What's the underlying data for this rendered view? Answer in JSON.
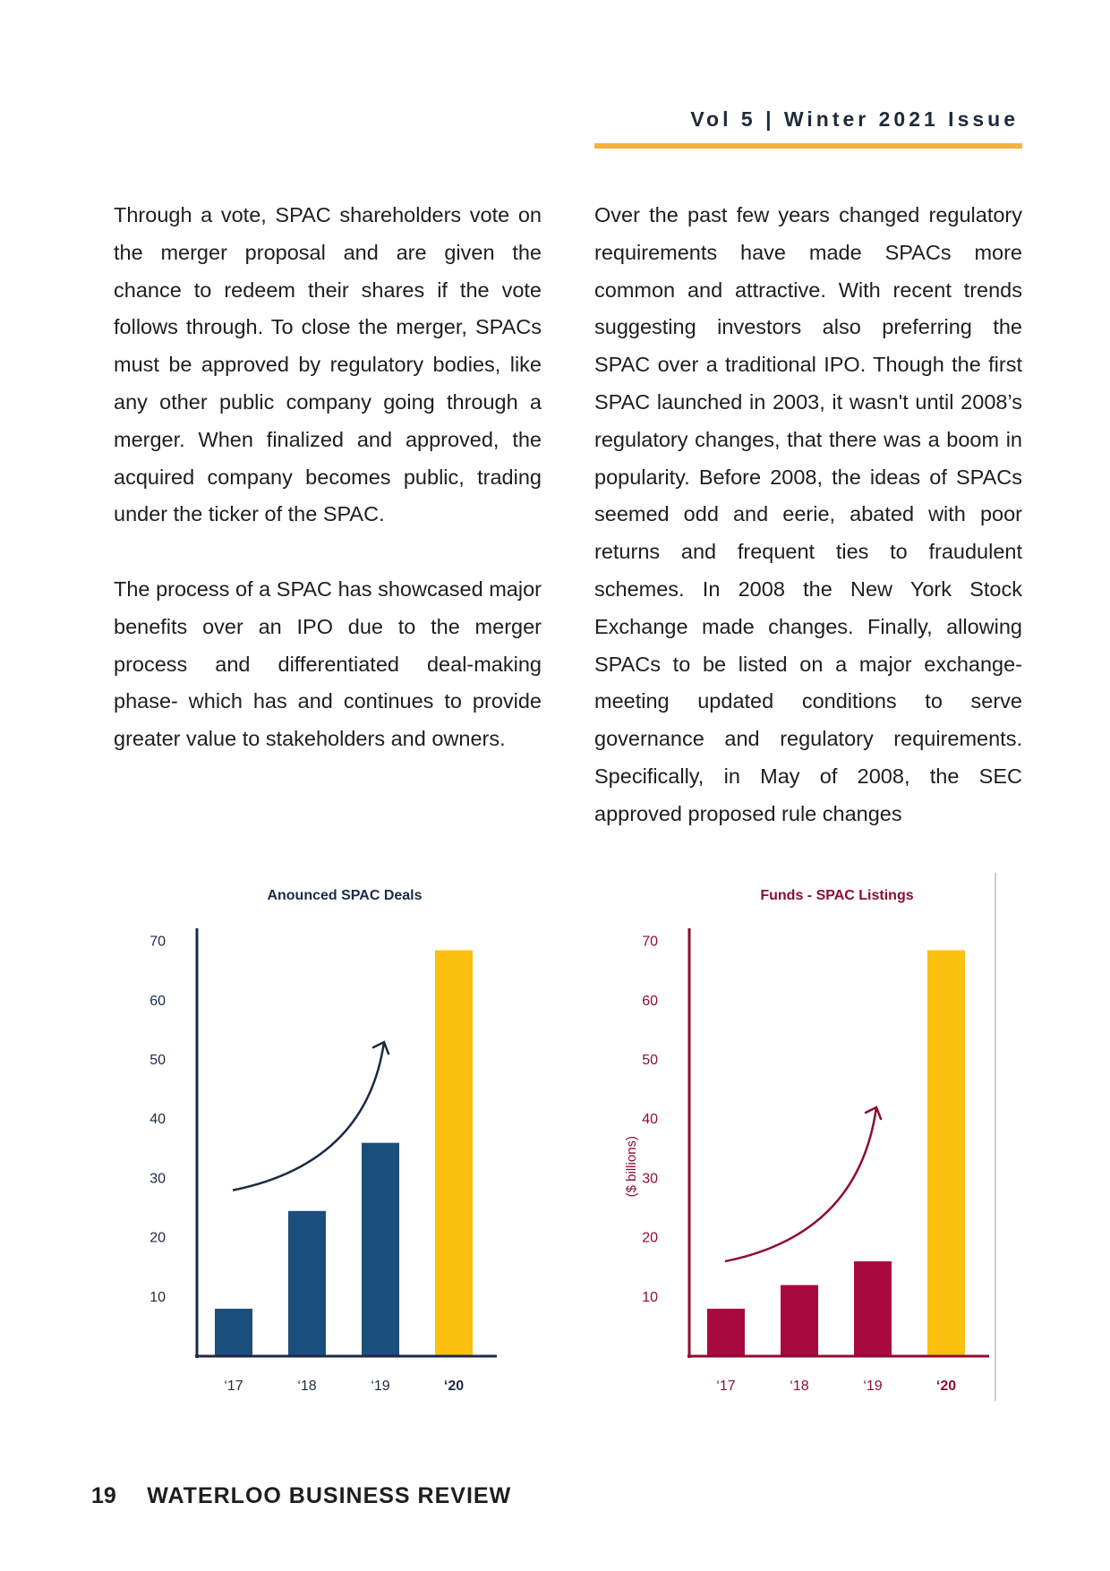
{
  "header": {
    "issue": "Vol 5 | Winter 2021 Issue",
    "rule_color": "#f6b23e"
  },
  "columns": {
    "left": [
      "Through a vote, SPAC shareholders vote on the merger proposal and are given the chance to redeem their shares if the vote follows through. To close the merger, SPACs must be approved by regulatory bodies, like any other public company going through a merger. When finalized and approved, the acquired company becomes public, trading under the ticker of the SPAC.",
      "The process of a SPAC has showcased major benefits over an IPO due to the merger process and differentiated deal-making phase- which has and continues to provide greater value to stakeholders and owners."
    ],
    "right": [
      "Over the past few years changed regulatory requirements have made SPACs more common and attractive. With recent trends suggesting investors also preferring the SPAC over a traditional IPO. Though the first SPAC launched in 2003, it wasn't until 2008’s regulatory changes, that there was a boom in popularity. Before 2008, the ideas of SPACs seemed odd and eerie, abated with poor returns and frequent ties to fraudulent schemes. In 2008 the New York Stock Exchange made changes. Finally, allowing SPACs to be listed on a major exchange- meeting updated conditions to serve governance and regulatory requirements. Specifically, in May of 2008, the SEC approved proposed rule changes"
    ]
  },
  "chart_data": [
    {
      "type": "bar",
      "title": "Anounced SPAC Deals",
      "categories": [
        "‘17",
        "‘18",
        "‘19",
        "‘20"
      ],
      "values": [
        8,
        24.5,
        36,
        68.5
      ],
      "yticks": [
        10,
        20,
        30,
        40,
        50,
        60,
        70
      ],
      "ylim": [
        0,
        72
      ],
      "ylabel": "",
      "bar_colors": [
        "#1a4e7c",
        "#1a4e7c",
        "#1a4e7c",
        "#fcc10e"
      ],
      "axis_color": "#1c2b45",
      "title_color": "#1c2b45",
      "tick_color": "#1c2b45",
      "trend_arrow": true,
      "last_label_bold": true
    },
    {
      "type": "bar",
      "title": "Funds - SPAC Listings",
      "categories": [
        "‘17",
        "‘18",
        "‘19",
        "‘20"
      ],
      "values": [
        8,
        12,
        16,
        68.5
      ],
      "yticks": [
        10,
        20,
        30,
        40,
        50,
        60,
        70
      ],
      "ylim": [
        0,
        72
      ],
      "ylabel": "($ billions)",
      "bar_colors": [
        "#a80a40",
        "#a80a40",
        "#a80a40",
        "#fcc10e"
      ],
      "axis_color": "#8d0e2e",
      "title_color": "#8d0e2e",
      "tick_color": "#8d0e2e",
      "trend_arrow": true,
      "last_label_bold": true
    }
  ],
  "footer": {
    "page_number": "19",
    "publication": "WATERLOO BUSINESS REVIEW"
  }
}
